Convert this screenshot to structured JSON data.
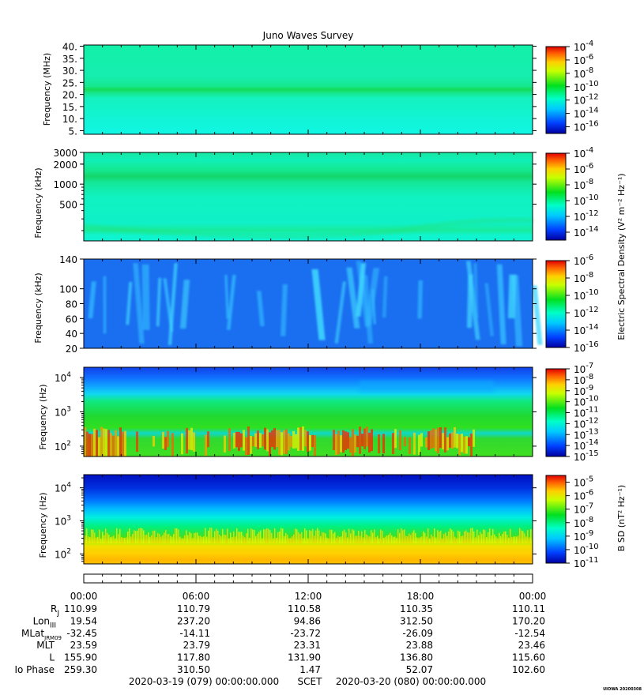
{
  "title": "Juno Waves Survey",
  "footer": {
    "start": "2020-03-19 (079) 00:00:00.000",
    "label": "SCET",
    "end": "2020-03-20 (080) 00:00:00.000",
    "stamp": "UIOWA 20200308"
  },
  "chart_data": [
    {
      "type": "heatmap",
      "title": "",
      "xlabel": "",
      "ylabel": "Frequency (MHz)",
      "yscale": "linear",
      "ylim": [
        3.5,
        40.5
      ],
      "yticks": [
        "5.",
        "10.",
        "15.",
        "20.",
        "25.",
        "30.",
        "35.",
        "40."
      ],
      "ytick_values": [
        5,
        10,
        15,
        20,
        25,
        30,
        35,
        40
      ],
      "colorbar_ticks": [
        "-4",
        "-6",
        "-8",
        "-10",
        "-12",
        "-14",
        "-16"
      ],
      "colorbar_range": [
        -17,
        -4
      ],
      "colorbar_label": "",
      "features": "uniform background near 1e-12 with a band near 21 MHz"
    },
    {
      "type": "heatmap",
      "title": "",
      "xlabel": "",
      "ylabel": "Frequency (kHz)",
      "yscale": "log",
      "ylim": [
        140,
        3000
      ],
      "yticks": [
        "3000",
        "2000",
        "1000",
        "500"
      ],
      "ytick_values": [
        3000,
        2000,
        1000,
        500
      ],
      "colorbar_ticks": [
        "-4",
        "-6",
        "-8",
        "-10",
        "-12",
        "-14"
      ],
      "colorbar_range": [
        -15,
        -4
      ],
      "colorbar_label": "Electric Spectral Density (V² m⁻² Hz⁻¹)",
      "features": "band near 1300 kHz and weak emission near the bottom"
    },
    {
      "type": "heatmap",
      "title": "",
      "xlabel": "",
      "ylabel": "Frequency (kHz)",
      "yscale": "linear",
      "ylim": [
        20,
        140
      ],
      "yticks": [
        "140",
        "100",
        "80",
        "60",
        "40",
        "20"
      ],
      "ytick_values": [
        140,
        100,
        80,
        60,
        40,
        20
      ],
      "colorbar_ticks": [
        "-6",
        "-8",
        "-10",
        "-12",
        "-14",
        "-16"
      ],
      "colorbar_range": [
        -16,
        -6
      ],
      "colorbar_label": "",
      "features": "blue background with sporadic cyan streaks"
    },
    {
      "type": "heatmap",
      "title": "",
      "xlabel": "",
      "ylabel": "Frequency (Hz)",
      "yscale": "log",
      "ylim": [
        50,
        20000
      ],
      "yticks": [
        "10",
        "10",
        "10"
      ],
      "ytick_exponents": [
        "4",
        "3",
        "2"
      ],
      "ytick_values": [
        10000,
        1000,
        100
      ],
      "colorbar_ticks": [
        "-7",
        "-8",
        "-9",
        "-10",
        "-11",
        "-12",
        "-13",
        "-14",
        "-15"
      ],
      "colorbar_range": [
        -15,
        -7
      ],
      "colorbar_label": "",
      "features": "green lower band with red/orange bursts below 300 Hz"
    },
    {
      "type": "heatmap",
      "title": "",
      "xlabel": "",
      "ylabel": "Frequency (Hz)",
      "yscale": "log",
      "ylim": [
        50,
        25000
      ],
      "yticks": [
        "10",
        "10",
        "10"
      ],
      "ytick_exponents": [
        "4",
        "3",
        "2"
      ],
      "ytick_values": [
        10000,
        1000,
        100
      ],
      "colorbar_ticks": [
        "-5",
        "-6",
        "-7",
        "-8",
        "-9",
        "-10",
        "-11"
      ],
      "colorbar_range": [
        -11,
        -4.5
      ],
      "colorbar_label": "B SD (nT² Hz⁻¹)",
      "features": "blue top, green middle, yellow/orange band near 100 Hz"
    }
  ],
  "ephemeris": {
    "times": [
      "00:00",
      "06:00",
      "12:00",
      "18:00",
      "00:00"
    ],
    "rows": [
      {
        "label": "R",
        "sub": "J",
        "values": [
          "110.99",
          "110.79",
          "110.58",
          "110.35",
          "110.11"
        ]
      },
      {
        "label": "Lon",
        "sub": "III",
        "values": [
          "19.54",
          "237.20",
          "94.86",
          "312.50",
          "170.20"
        ]
      },
      {
        "label": "MLat",
        "sub": "JRM09",
        "values": [
          "-32.45",
          "-14.11",
          "-23.72",
          "-26.09",
          "-12.54"
        ]
      },
      {
        "label": "MLT",
        "sub": "",
        "values": [
          "23.59",
          "23.79",
          "23.31",
          "23.88",
          "23.46"
        ]
      },
      {
        "label": "L",
        "sub": "",
        "values": [
          "155.90",
          "117.80",
          "131.90",
          "136.80",
          "115.60"
        ]
      },
      {
        "label": "Io Phase",
        "sub": "",
        "values": [
          "259.30",
          "310.50",
          "1.47",
          "52.07",
          "102.60"
        ]
      }
    ]
  }
}
